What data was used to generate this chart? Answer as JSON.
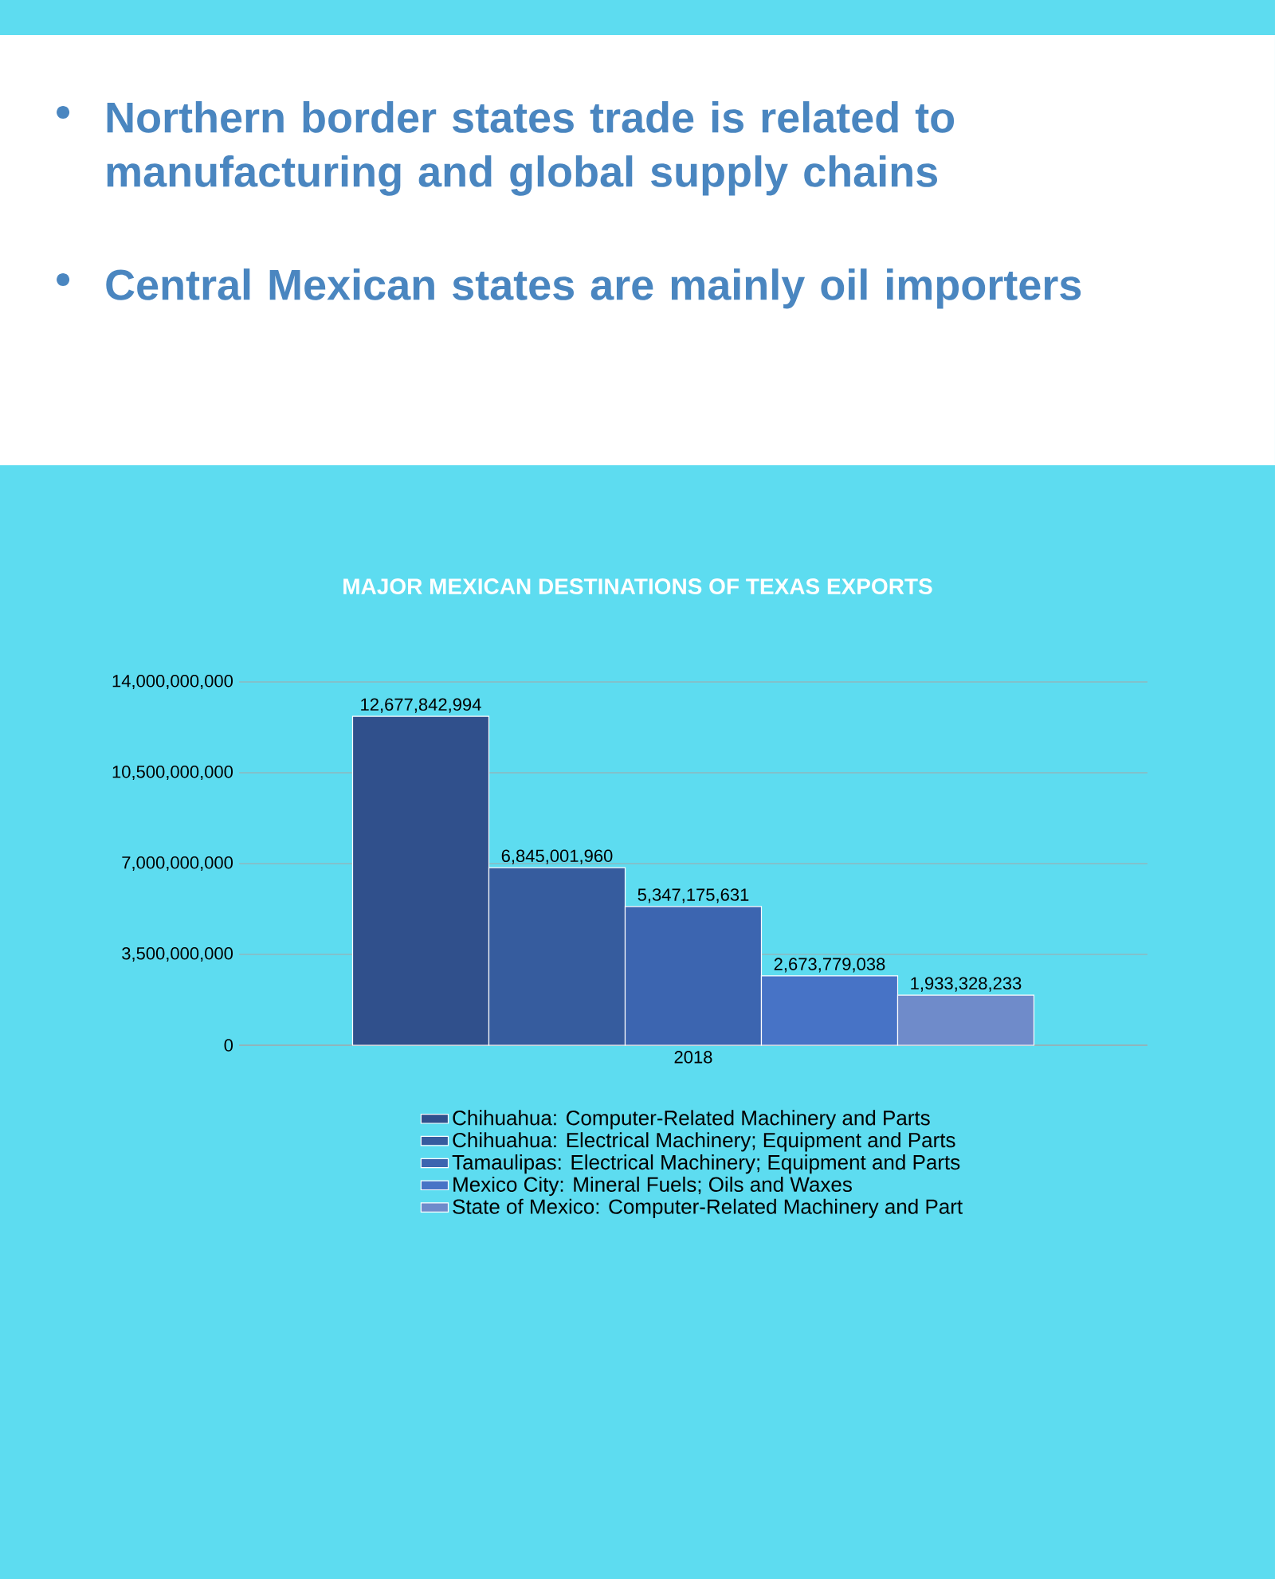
{
  "chart_data": {
    "type": "bar",
    "title": "MAJOR MEXICAN DESTINATIONS OF TEXAS EXPORTS",
    "annotations": [
      "Northern border states trade is related to manufacturing and global supply chains",
      "Central Mexican states are mainly oil importers"
    ],
    "categories": [
      "2018"
    ],
    "series": [
      {
        "name": "Chihuahua: Computer-Related Machinery and Parts",
        "color": "#30508c",
        "values": [
          12677842994
        ],
        "value_labels": [
          "12,677,842,994"
        ]
      },
      {
        "name": "Chihuahua: Electrical Machinery; Equipment and Parts",
        "color": "#365c9e",
        "values": [
          6845001960
        ],
        "value_labels": [
          "6,845,001,960"
        ]
      },
      {
        "name": "Tamaulipas: Electrical Machinery; Equipment and Parts",
        "color": "#3c65b0",
        "values": [
          5347175631
        ],
        "value_labels": [
          "5,347,175,631"
        ]
      },
      {
        "name": "Mexico City: Mineral Fuels; Oils and Waxes",
        "color": "#4773c6",
        "values": [
          2673779038
        ],
        "value_labels": [
          "2,673,779,038"
        ]
      },
      {
        "name": "State of Mexico: Computer-Related Machinery and Part",
        "color": "#6f8bca",
        "values": [
          1933328233
        ],
        "value_labels": [
          "1,933,328,233"
        ]
      }
    ],
    "ylim": [
      0,
      14000000000
    ],
    "yticks": [
      0,
      {
        "value": 3500000000,
        "label": "3,500,000,000"
      },
      {
        "value": 7000000000,
        "label": "7,000,000,000"
      },
      {
        "value": 10500000000,
        "label": "10,500,000,000"
      },
      {
        "value": 14000000000,
        "label": "14,000,000,000"
      }
    ],
    "grid": "y",
    "legend": "bottom"
  }
}
